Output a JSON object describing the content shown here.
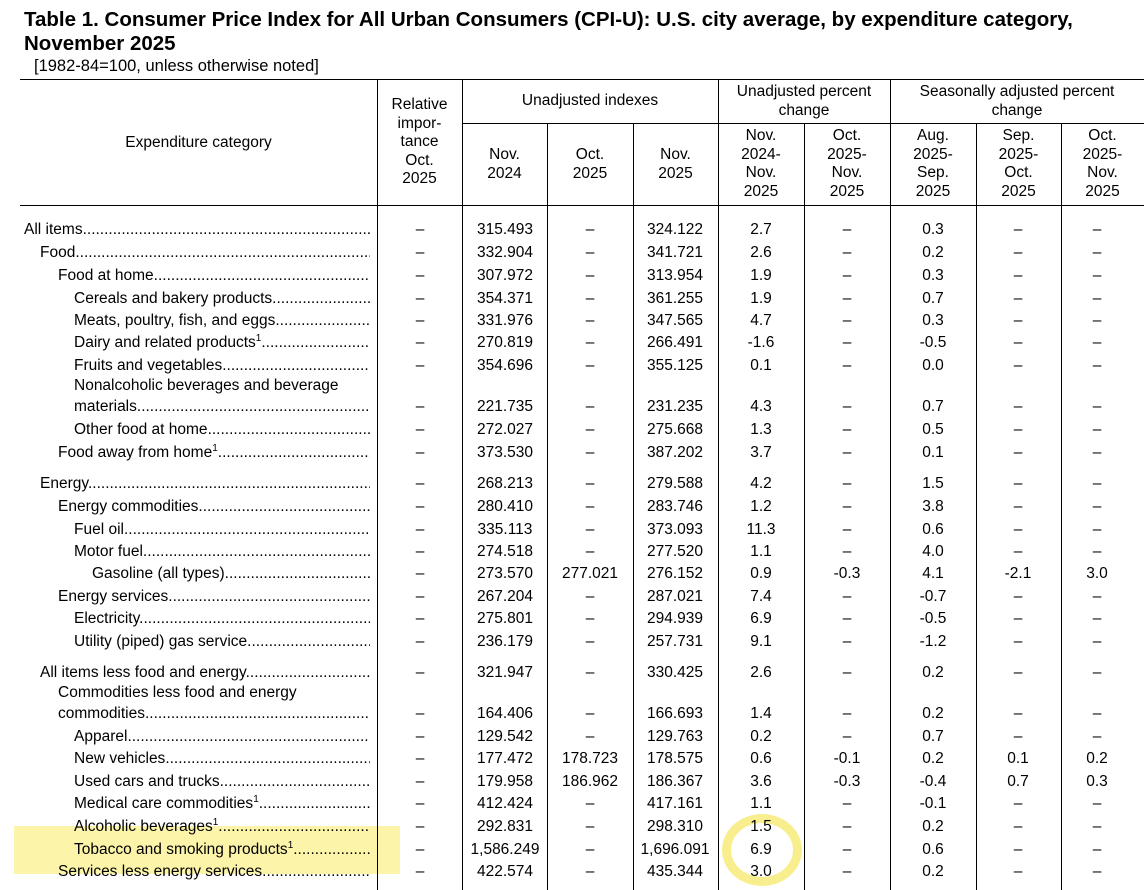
{
  "title": "Table 1. Consumer Price Index for All Urban Consumers (CPI-U): U.S. city average, by expenditure category, November 2025",
  "subtitle": "[1982-84=100, unless otherwise noted]",
  "headers": {
    "category": "Expenditure category",
    "relative_importance": [
      "Relative",
      "impor-",
      "tance",
      "Oct.",
      "2025"
    ],
    "unadjusted_indexes": "Unadjusted indexes",
    "unadjusted_pct": [
      "Unadjusted percent",
      "change"
    ],
    "seasonal_pct": [
      "Seasonally adjusted percent",
      "change"
    ],
    "columns": [
      [
        "Nov.",
        "2024"
      ],
      [
        "Oct.",
        "2025"
      ],
      [
        "Nov.",
        "2025"
      ],
      [
        "Nov.",
        "2024-",
        "Nov.",
        "2025"
      ],
      [
        "Oct.",
        "2025-",
        "Nov.",
        "2025"
      ],
      [
        "Aug.",
        "2025-",
        "Sep.",
        "2025"
      ],
      [
        "Sep.",
        "2025-",
        "Oct.",
        "2025"
      ],
      [
        "Oct.",
        "2025-",
        "Nov.",
        "2025"
      ]
    ]
  },
  "rows": [
    {
      "label": "All items",
      "indent": 0,
      "sup": "",
      "values": [
        "–",
        "315.493",
        "–",
        "324.122",
        "2.7",
        "–",
        "0.3",
        "–",
        "–"
      ]
    },
    {
      "label": "Food",
      "indent": 1,
      "sup": "",
      "values": [
        "–",
        "332.904",
        "–",
        "341.721",
        "2.6",
        "–",
        "0.2",
        "–",
        "–"
      ]
    },
    {
      "label": "Food at home",
      "indent": 2,
      "sup": "",
      "values": [
        "–",
        "307.972",
        "–",
        "313.954",
        "1.9",
        "–",
        "0.3",
        "–",
        "–"
      ]
    },
    {
      "label": "Cereals and bakery products",
      "indent": 3,
      "sup": "",
      "values": [
        "–",
        "354.371",
        "–",
        "361.255",
        "1.9",
        "–",
        "0.7",
        "–",
        "–"
      ]
    },
    {
      "label": "Meats, poultry, fish, and eggs",
      "indent": 3,
      "sup": "",
      "values": [
        "–",
        "331.976",
        "–",
        "347.565",
        "4.7",
        "–",
        "0.3",
        "–",
        "–"
      ]
    },
    {
      "label": "Dairy and related products",
      "indent": 3,
      "sup": "1",
      "values": [
        "–",
        "270.819",
        "–",
        "266.491",
        "-1.6",
        "–",
        "-0.5",
        "–",
        "–"
      ]
    },
    {
      "label": "Fruits and vegetables",
      "indent": 3,
      "sup": "",
      "values": [
        "–",
        "354.696",
        "–",
        "355.125",
        "0.1",
        "–",
        "0.0",
        "–",
        "–"
      ]
    },
    {
      "label": "materials",
      "label_line1": "Nonalcoholic beverages and beverage",
      "indent": 3,
      "sup": "",
      "values": [
        "–",
        "221.735",
        "–",
        "231.235",
        "4.3",
        "–",
        "0.7",
        "–",
        "–"
      ]
    },
    {
      "label": "Other food at home",
      "indent": 3,
      "sup": "",
      "values": [
        "–",
        "272.027",
        "–",
        "275.668",
        "1.3",
        "–",
        "0.5",
        "–",
        "–"
      ]
    },
    {
      "label": "Food away from home",
      "indent": 2,
      "sup": "1",
      "values": [
        "–",
        "373.530",
        "–",
        "387.202",
        "3.7",
        "–",
        "0.1",
        "–",
        "–"
      ]
    },
    {
      "label": "Energy",
      "indent": 1,
      "sup": "",
      "values": [
        "–",
        "268.213",
        "–",
        "279.588",
        "4.2",
        "–",
        "1.5",
        "–",
        "–"
      ]
    },
    {
      "label": "Energy commodities",
      "indent": 2,
      "sup": "",
      "values": [
        "–",
        "280.410",
        "–",
        "283.746",
        "1.2",
        "–",
        "3.8",
        "–",
        "–"
      ]
    },
    {
      "label": "Fuel oil",
      "indent": 3,
      "sup": "",
      "values": [
        "–",
        "335.113",
        "–",
        "373.093",
        "11.3",
        "–",
        "0.6",
        "–",
        "–"
      ]
    },
    {
      "label": "Motor fuel",
      "indent": 3,
      "sup": "",
      "values": [
        "–",
        "274.518",
        "–",
        "277.520",
        "1.1",
        "–",
        "4.0",
        "–",
        "–"
      ]
    },
    {
      "label": "Gasoline (all types)",
      "indent": 4,
      "sup": "",
      "values": [
        "–",
        "273.570",
        "277.021",
        "276.152",
        "0.9",
        "-0.3",
        "4.1",
        "-2.1",
        "3.0"
      ]
    },
    {
      "label": "Energy services",
      "indent": 2,
      "sup": "",
      "values": [
        "–",
        "267.204",
        "–",
        "287.021",
        "7.4",
        "–",
        "-0.7",
        "–",
        "–"
      ]
    },
    {
      "label": "Electricity",
      "indent": 3,
      "sup": "",
      "values": [
        "–",
        "275.801",
        "–",
        "294.939",
        "6.9",
        "–",
        "-0.5",
        "–",
        "–"
      ]
    },
    {
      "label": "Utility (piped) gas service",
      "indent": 3,
      "sup": "",
      "values": [
        "–",
        "236.179",
        "–",
        "257.731",
        "9.1",
        "–",
        "-1.2",
        "–",
        "–"
      ]
    },
    {
      "label": "All items less food and energy",
      "indent": 1,
      "sup": "",
      "values": [
        "–",
        "321.947",
        "–",
        "330.425",
        "2.6",
        "–",
        "0.2",
        "–",
        "–"
      ]
    },
    {
      "label": "commodities",
      "label_line1": "Commodities less food and energy",
      "indent": 2,
      "sup": "",
      "values": [
        "–",
        "164.406",
        "–",
        "166.693",
        "1.4",
        "–",
        "0.2",
        "–",
        "–"
      ]
    },
    {
      "label": "Apparel",
      "indent": 3,
      "sup": "",
      "values": [
        "–",
        "129.542",
        "–",
        "129.763",
        "0.2",
        "–",
        "0.7",
        "–",
        "–"
      ]
    },
    {
      "label": "New vehicles",
      "indent": 3,
      "sup": "",
      "values": [
        "–",
        "177.472",
        "178.723",
        "178.575",
        "0.6",
        "-0.1",
        "0.2",
        "0.1",
        "0.2"
      ]
    },
    {
      "label": "Used cars and trucks",
      "indent": 3,
      "sup": "",
      "values": [
        "–",
        "179.958",
        "186.962",
        "186.367",
        "3.6",
        "-0.3",
        "-0.4",
        "0.7",
        "0.3"
      ]
    },
    {
      "label": "Medical care commodities",
      "indent": 3,
      "sup": "1",
      "values": [
        "–",
        "412.424",
        "–",
        "417.161",
        "1.1",
        "–",
        "-0.1",
        "–",
        "–"
      ]
    },
    {
      "label": "Alcoholic beverages",
      "indent": 3,
      "sup": "1",
      "values": [
        "–",
        "292.831",
        "–",
        "298.310",
        "1.5",
        "–",
        "0.2",
        "–",
        "–"
      ]
    },
    {
      "label": "Tobacco and smoking products",
      "indent": 3,
      "sup": "1",
      "values": [
        "–",
        "1,586.249",
        "–",
        "1,696.091",
        "6.9",
        "–",
        "0.6",
        "–",
        "–"
      ]
    },
    {
      "label": "Services less energy services",
      "indent": 2,
      "sup": "",
      "values": [
        "–",
        "422.574",
        "–",
        "435.344",
        "3.0",
        "–",
        "0.2",
        "–",
        "–"
      ]
    }
  ],
  "highlight": {
    "row_label": "Tobacco and smoking products",
    "value": "6.9",
    "color": "#f8ec82"
  }
}
